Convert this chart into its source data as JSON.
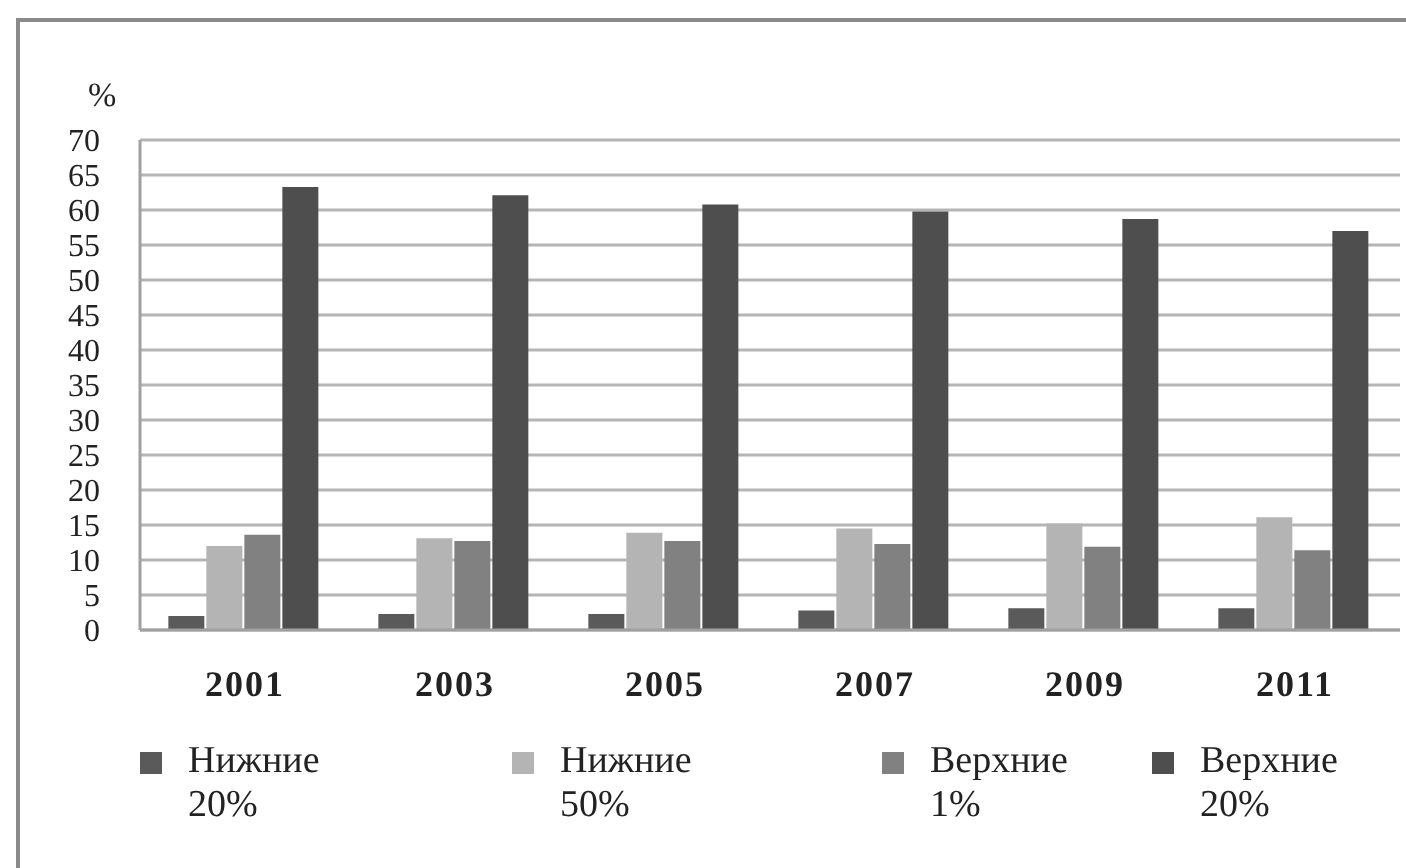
{
  "chart_data": {
    "type": "bar",
    "ylabel": "%",
    "categories": [
      "2001",
      "2003",
      "2005",
      "2007",
      "2009",
      "2011"
    ],
    "series": [
      {
        "name": "Нижние 20%",
        "color": "#5a5a5a",
        "values": [
          2.0,
          2.3,
          2.3,
          2.8,
          3.1,
          3.1
        ]
      },
      {
        "name": "Нижние 50%",
        "color": "#b4b4b4",
        "values": [
          12.0,
          13.1,
          13.9,
          14.5,
          15.2,
          16.1
        ]
      },
      {
        "name": "Верхние 1%",
        "color": "#818181",
        "values": [
          13.6,
          12.7,
          12.7,
          12.3,
          11.9,
          11.4
        ]
      },
      {
        "name": "Верхние 20%",
        "color": "#4e4e4e",
        "values": [
          63.3,
          62.1,
          60.8,
          59.8,
          58.7,
          57.0
        ]
      }
    ],
    "ylim": [
      0,
      70
    ],
    "yticks": [
      0,
      5,
      10,
      15,
      20,
      25,
      30,
      35,
      40,
      45,
      50,
      55,
      60,
      65,
      70
    ],
    "grid": "y",
    "legend": "bottom"
  }
}
